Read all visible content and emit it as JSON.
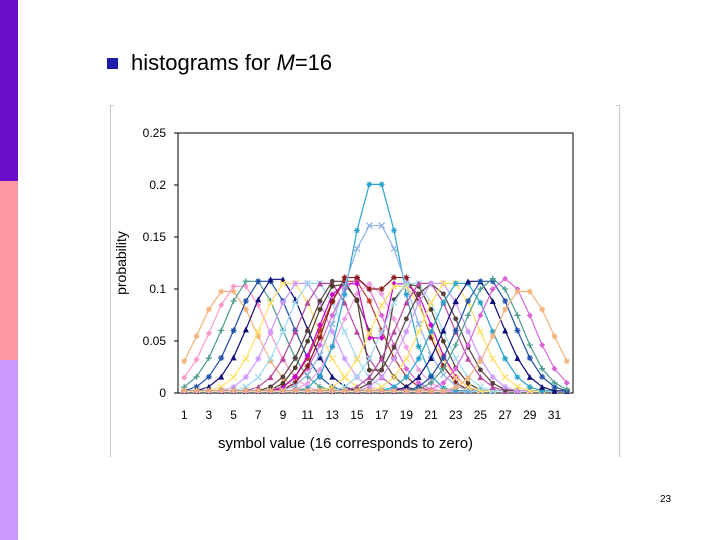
{
  "slide": {
    "bullet_text": "histograms for ",
    "bullet_var": "M",
    "bullet_tail": "=16",
    "slide_number": "23"
  },
  "colors": {
    "sidebar_top": "#6a0dc9",
    "sidebar_mid": "#ff99a6",
    "sidebar_bottom": "#cc99ff",
    "bullet": "#1c1ca8"
  },
  "chart_data": {
    "type": "line",
    "title": "",
    "xlabel": "symbol value (16 corresponds to zero)",
    "ylabel": "probability",
    "xlim": [
      1,
      32
    ],
    "ylim": [
      0,
      0.25
    ],
    "yticks": [
      "0",
      "0.05",
      "0.1",
      "0.15",
      "0.2",
      "0.25"
    ],
    "xtick_labels": [
      "1",
      "3",
      "5",
      "7",
      "9",
      "11",
      "13",
      "15",
      "17",
      "19",
      "21",
      "23",
      "25",
      "27",
      "29",
      "31"
    ],
    "grid": false,
    "legend": "none",
    "series": [
      {
        "name": "c0",
        "color": "#f2b27a",
        "marker": "star",
        "center": 4.5,
        "peak": 0.1,
        "spread": 5.0
      },
      {
        "name": "c1",
        "color": "#ff99cc",
        "marker": "diamond",
        "center": 5.5,
        "peak": 0.105,
        "spread": 5.0
      },
      {
        "name": "c2",
        "color": "#4b9c8c",
        "marker": "plus",
        "center": 6.5,
        "peak": 0.11,
        "spread": 5.0
      },
      {
        "name": "c3",
        "color": "#1f4fa8",
        "marker": "star",
        "center": 7.5,
        "peak": 0.11,
        "spread": 5.0
      },
      {
        "name": "c4",
        "color": "#0d0d7a",
        "marker": "triangle",
        "center": 8.5,
        "peak": 0.112,
        "spread": 5.0
      },
      {
        "name": "c5",
        "color": "#ffe066",
        "marker": "x",
        "center": 9.5,
        "peak": 0.108,
        "spread": 5.0
      },
      {
        "name": "c6",
        "color": "#cc99ff",
        "marker": "star",
        "center": 10.5,
        "peak": 0.108,
        "spread": 5.0
      },
      {
        "name": "c7",
        "color": "#9ed9f0",
        "marker": "x",
        "center": 11.5,
        "peak": 0.108,
        "spread": 5.0
      },
      {
        "name": "c8",
        "color": "#b54aa0",
        "marker": "triangle",
        "center": 12.5,
        "peak": 0.108,
        "spread": 5.0
      },
      {
        "name": "c9",
        "color": "#5a4040",
        "marker": "circle",
        "center": 13.5,
        "peak": 0.11,
        "spread": 5.0
      },
      {
        "name": "c10",
        "color": "#c0392b",
        "marker": "star",
        "center": 14.5,
        "peak": 0.11,
        "spread": 5.0
      },
      {
        "name": "c11",
        "color": "#d966d9",
        "marker": "diamond",
        "center": 15.0,
        "peak": 0.11,
        "spread": 5.0
      },
      {
        "name": "c12",
        "color": "#f0a0e6",
        "marker": "diamond",
        "center": 16.0,
        "peak": 0.105,
        "spread": 5.0
      },
      {
        "name": "m1",
        "color": "#8b1a1a",
        "marker": "star",
        "kind": "double",
        "center": 16.5,
        "sep": 2.0,
        "peak": 0.111,
        "spread": 4.5,
        "dip": 0.1
      },
      {
        "name": "m2",
        "color": "#cc00cc",
        "marker": "diamond",
        "kind": "double",
        "center": 16.5,
        "sep": 2.5,
        "peak": 0.105,
        "spread": 4.5,
        "dip": 0.053
      },
      {
        "name": "m3",
        "color": "#4d3d2d",
        "marker": "circle",
        "kind": "double",
        "center": 16.5,
        "sep": 3.0,
        "peak": 0.105,
        "spread": 4.5,
        "dip": 0.022
      },
      {
        "name": "m4",
        "color": "#29a3cc",
        "marker": "star",
        "kind": "peak",
        "center": 16.5,
        "peak": 0.207,
        "spread": 2.0
      },
      {
        "name": "m5",
        "color": "#8cb3e6",
        "marker": "x",
        "kind": "peak",
        "center": 16.5,
        "peak": 0.164,
        "spread": 2.6
      },
      {
        "name": "c13",
        "color": "#ffe066",
        "marker": "x",
        "center": 18.5,
        "peak": 0.105,
        "spread": 5.0
      },
      {
        "name": "c14",
        "color": "#9ed9f0",
        "marker": "x",
        "center": 19.5,
        "peak": 0.108,
        "spread": 5.0
      },
      {
        "name": "c15",
        "color": "#b54aa0",
        "marker": "triangle",
        "center": 20.5,
        "peak": 0.108,
        "spread": 5.0
      },
      {
        "name": "c16",
        "color": "#5a4040",
        "marker": "circle",
        "center": 21.0,
        "peak": 0.105,
        "spread": 5.0
      },
      {
        "name": "c17",
        "color": "#cc99ff",
        "marker": "star",
        "center": 21.5,
        "peak": 0.108,
        "spread": 5.0
      },
      {
        "name": "c18",
        "color": "#ffe066",
        "marker": "x",
        "center": 22.5,
        "peak": 0.108,
        "spread": 5.0
      },
      {
        "name": "c19",
        "color": "#29a3cc",
        "marker": "star",
        "center": 23.5,
        "peak": 0.108,
        "spread": 5.0
      },
      {
        "name": "c20",
        "color": "#0d0d7a",
        "marker": "triangle",
        "center": 24.5,
        "peak": 0.11,
        "spread": 5.0
      },
      {
        "name": "c21",
        "color": "#1f4fa8",
        "marker": "star",
        "center": 25.5,
        "peak": 0.11,
        "spread": 5.0
      },
      {
        "name": "c22",
        "color": "#4b9c8c",
        "marker": "plus",
        "center": 26.0,
        "peak": 0.11,
        "spread": 5.0
      },
      {
        "name": "c23",
        "color": "#d966d9",
        "marker": "diamond",
        "center": 27.0,
        "peak": 0.11,
        "spread": 5.0
      },
      {
        "name": "c24",
        "color": "#f2b27a",
        "marker": "star",
        "center": 28.5,
        "peak": 0.1,
        "spread": 5.0
      }
    ]
  }
}
